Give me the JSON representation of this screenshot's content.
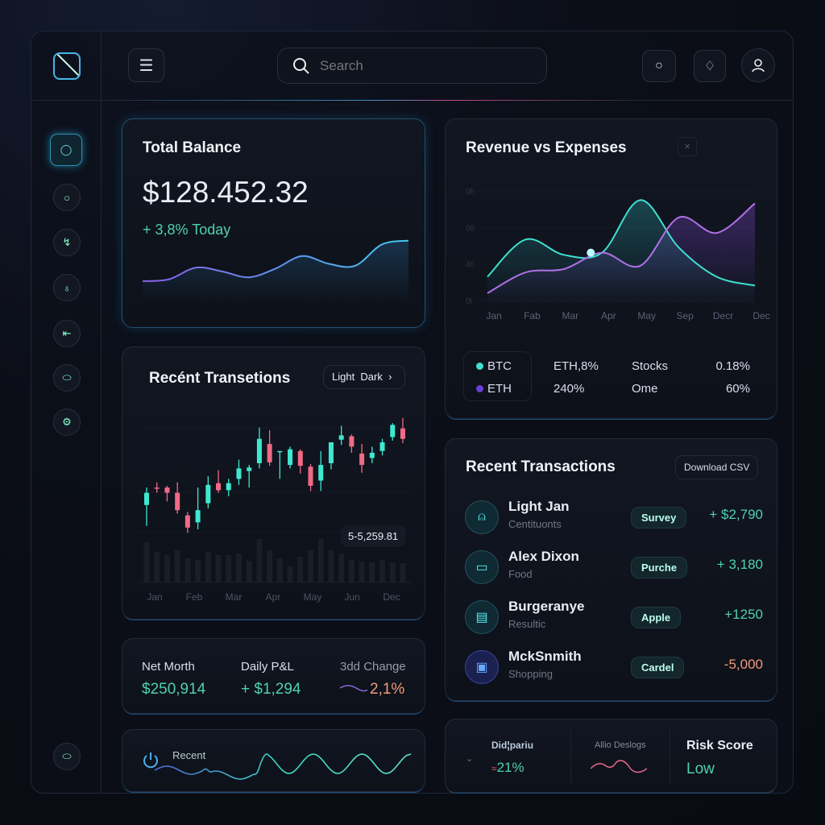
{
  "colors": {
    "accent": "#46b6e6",
    "teal": "#3fe0d0",
    "purple": "#b070e8",
    "up": "#3ee8d0",
    "down": "#f06a86",
    "positive": "#4fd1b0",
    "negative": "#f29a7a"
  },
  "header": {
    "search_placeholder": "Search",
    "icons": [
      "menu-icon",
      "search-icon",
      "circle-icon",
      "bell-icon",
      "user-icon"
    ]
  },
  "sidebar": {
    "items": [
      "search-icon",
      "circle-icon",
      "chart-icon",
      "wallet-icon",
      "export-icon",
      "eye-icon",
      "settings-icon"
    ],
    "bottom": "eye-icon"
  },
  "balance": {
    "title": "Total Balance",
    "amount": "$128.452.32",
    "change": "+ 3,8% Today",
    "spark": [
      20,
      22,
      34,
      30,
      24,
      33,
      46,
      38,
      36,
      58,
      62
    ]
  },
  "revenue": {
    "title": "Revenue vs Expenses",
    "close": "×",
    "legend": [
      {
        "name": "BTC",
        "v1": "ETH,8%",
        "k": "Stocks",
        "v2": "0.18%"
      },
      {
        "name": "ETH",
        "v1": "240%",
        "k": "Ome",
        "v2": "60%"
      }
    ]
  },
  "candles_card": {
    "title": "Recént Transetions",
    "toggle": "Light  Dark",
    "price_tag": "5-5,259.81"
  },
  "stats": {
    "items": [
      {
        "label": "Net Morth",
        "value": "$250,914"
      },
      {
        "label": "Daily P&L",
        "value": "+ $1,294"
      },
      {
        "label": "3dd Change",
        "value": "2,1%"
      }
    ]
  },
  "recent_wave": {
    "label": "Recent"
  },
  "transactions": {
    "title": "Recent Transactions",
    "download": "Download CSV",
    "rows": [
      {
        "name": "Light Jan",
        "sub": "Centituonts",
        "tag": "Survey",
        "amount": "+ $2,790",
        "icon": "user-icon"
      },
      {
        "name": "Alex Dixon",
        "sub": "Food",
        "tag": "Purche",
        "amount": "+ 3,180",
        "icon": "card-icon"
      },
      {
        "name": "Burgeranye",
        "sub": "Resultic",
        "tag": "Apple",
        "amount": "+1250",
        "icon": "folder-icon"
      },
      {
        "name": "MckSnmith",
        "sub": "Shopping",
        "tag": "Cardel",
        "amount": "-5,000",
        "icon": "bag-icon"
      }
    ]
  },
  "bottom_right": {
    "a_label": "Did¦pariu",
    "a_value": "21%",
    "b_label": "Allio Deslogs",
    "risk_label": "Risk Score",
    "risk_value": "Low"
  },
  "chart_data": [
    {
      "type": "line",
      "title": "Revenue vs Expenses",
      "categories": [
        "Jan",
        "Fab",
        "Mar",
        "Apr",
        "May",
        "Sep",
        "Decr",
        "Dec"
      ],
      "yticks": [
        "0h",
        "05",
        "40",
        "0l"
      ],
      "ylim": [
        0,
        100
      ],
      "grid": true,
      "series": [
        {
          "name": "BTC",
          "values": [
            18,
            52,
            38,
            40,
            88,
            45,
            18,
            10
          ]
        },
        {
          "name": "ETH",
          "values": [
            3,
            22,
            25,
            40,
            28,
            72,
            58,
            85
          ]
        }
      ]
    },
    {
      "type": "candlestick",
      "title": "Recént Transetions",
      "categories": [
        "Jan",
        "Feb",
        "Mar",
        "Apr",
        "May",
        "Jun",
        "Dec"
      ],
      "ohlc": [
        [
          78,
          92,
          98,
          54
        ],
        [
          98,
          97,
          104,
          92
        ],
        [
          98,
          92,
          100,
          82
        ],
        [
          92,
          72,
          104,
          68
        ],
        [
          66,
          52,
          70,
          46
        ],
        [
          58,
          72,
          98,
          50
        ],
        [
          80,
          101,
          111,
          74
        ],
        [
          103,
          95,
          118,
          92
        ],
        [
          95,
          103,
          108,
          88
        ],
        [
          108,
          120,
          130,
          101
        ],
        [
          117,
          121,
          124,
          98
        ],
        [
          126,
          154,
          167,
          120
        ],
        [
          148,
          127,
          164,
          123
        ],
        [
          140,
          140,
          140,
          108
        ],
        [
          124,
          142,
          145,
          120
        ],
        [
          140,
          123,
          142,
          114
        ],
        [
          122,
          100,
          125,
          94
        ],
        [
          106,
          124,
          140,
          94
        ],
        [
          126,
          150,
          150,
          119
        ],
        [
          153,
          158,
          169,
          147
        ],
        [
          157,
          145,
          159,
          138
        ],
        [
          137,
          124,
          148,
          115
        ],
        [
          132,
          138,
          145,
          126
        ],
        [
          140,
          150,
          154,
          135
        ],
        [
          156,
          170,
          172,
          152
        ],
        [
          166,
          154,
          178,
          149
        ]
      ],
      "volume": [
        50,
        38,
        34,
        40,
        30,
        28,
        38,
        34,
        34,
        36,
        27,
        54,
        40,
        30,
        20,
        32,
        40,
        54,
        40,
        36,
        28,
        26,
        25,
        28,
        25,
        24
      ]
    }
  ]
}
